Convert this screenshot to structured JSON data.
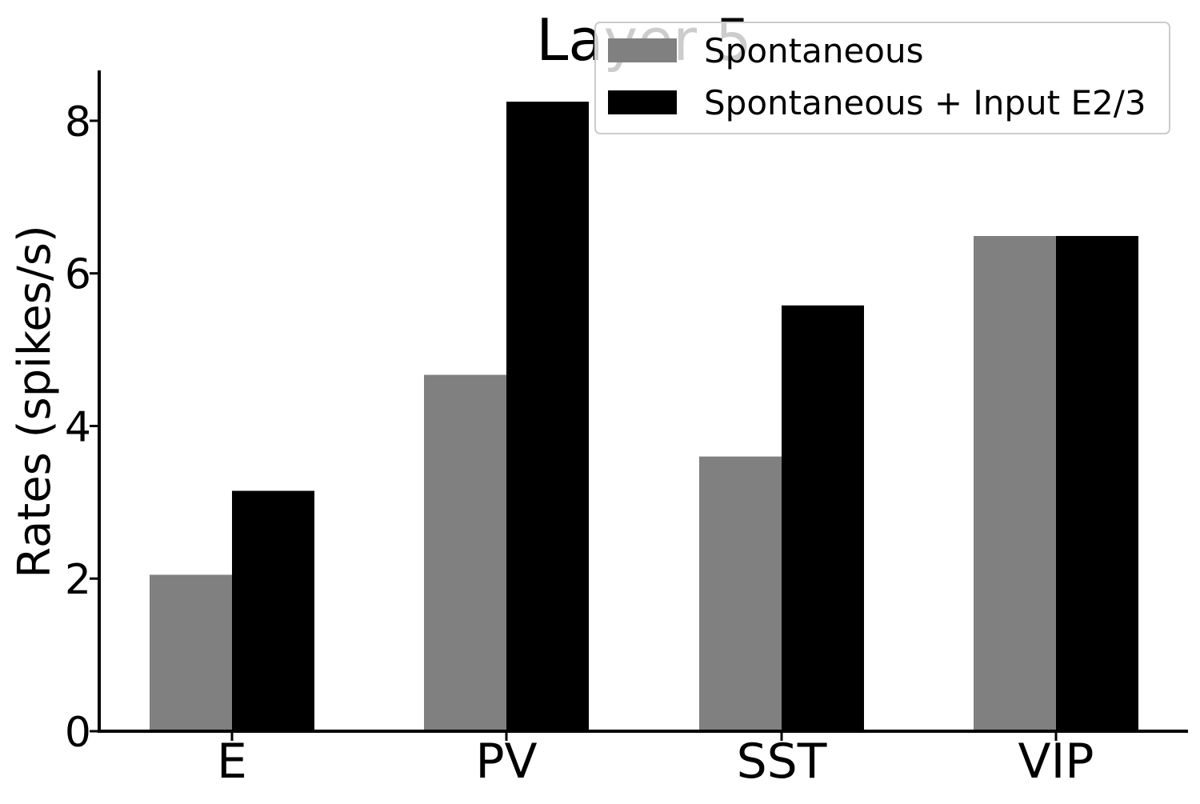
{
  "chart_data": {
    "type": "bar",
    "title": "Layer 5",
    "xlabel": "",
    "ylabel": "Rates (spikes/s)",
    "categories": [
      "E",
      "PV",
      "SST",
      "VIP"
    ],
    "series": [
      {
        "name": "Spontaneous",
        "color": "#808080",
        "values": [
          2.05,
          4.67,
          3.6,
          6.49
        ]
      },
      {
        "name": "Spontaneous + Input E2/3",
        "color": "#000000",
        "values": [
          3.15,
          8.25,
          5.58,
          6.49
        ]
      }
    ],
    "ylim": [
      0,
      8.66
    ],
    "yticks": [
      "0",
      "2",
      "4",
      "6",
      "8"
    ],
    "grid": false,
    "legend_position": "top-right"
  }
}
